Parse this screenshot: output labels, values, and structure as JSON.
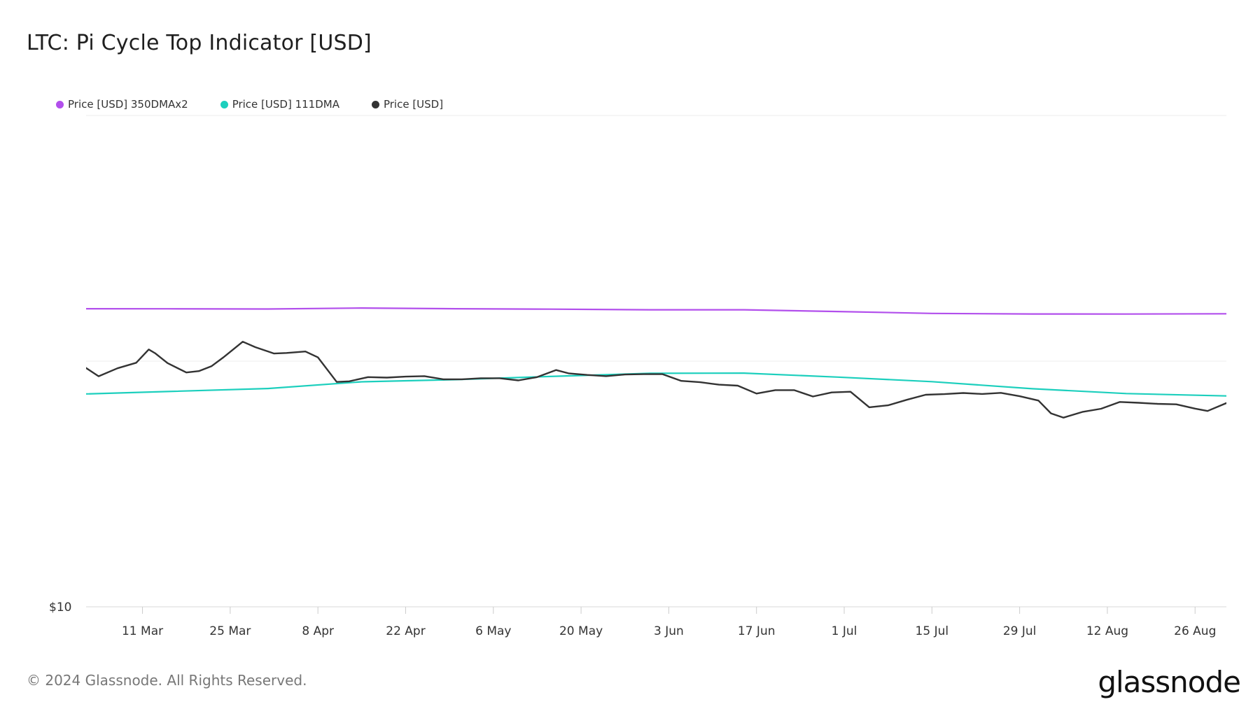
{
  "title": "LTC: Pi Cycle Top Indicator [USD]",
  "legend": [
    {
      "label": "Price [USD] 350DMAx2",
      "color": "#b24fec"
    },
    {
      "label": "Price [USD] 111DMA",
      "color": "#1ccfbd"
    },
    {
      "label": "Price [USD]",
      "color": "#333333"
    }
  ],
  "footer": "© 2024 Glassnode. All Rights Reserved.",
  "logo": "glassnode",
  "chart_data": {
    "type": "line",
    "title": "LTC: Pi Cycle Top Indicator [USD]",
    "y_scale": "log",
    "y_tick_labels": [
      "$10"
    ],
    "y_tick_values": [
      10
    ],
    "ylim": [
      10,
      1000
    ],
    "x_range": [
      "2024-03-02",
      "2024-08-31"
    ],
    "x_ticks": [
      "2024-03-11",
      "2024-03-25",
      "2024-04-08",
      "2024-04-22",
      "2024-05-06",
      "2024-05-20",
      "2024-06-03",
      "2024-06-17",
      "2024-07-01",
      "2024-07-15",
      "2024-07-29",
      "2024-08-12",
      "2024-08-26"
    ],
    "x_tick_labels": [
      "11 Mar",
      "25 Mar",
      "8 Apr",
      "22 Apr",
      "6 May",
      "20 May",
      "3 Jun",
      "17 Jun",
      "1 Jul",
      "15 Jul",
      "29 Jul",
      "12 Aug",
      "26 Aug"
    ],
    "grid": "horizontal",
    "legend_position": "top-left",
    "series": [
      {
        "name": "Price [USD] 350DMAx2",
        "color": "#b24fec",
        "x": [
          "2024-03-01",
          "2024-03-15",
          "2024-03-31",
          "2024-04-15",
          "2024-04-30",
          "2024-05-15",
          "2024-05-31",
          "2024-06-15",
          "2024-06-30",
          "2024-07-15",
          "2024-07-31",
          "2024-08-15",
          "2024-08-31"
        ],
        "y": [
          163.5,
          163.3,
          163.0,
          164.5,
          163.5,
          162.8,
          161.8,
          161.8,
          159.2,
          156.4,
          155.6,
          155.5,
          155.9
        ]
      },
      {
        "name": "Price [USD] 111DMA",
        "color": "#1ccfbd",
        "x": [
          "2024-03-01",
          "2024-03-15",
          "2024-03-31",
          "2024-04-15",
          "2024-04-30",
          "2024-05-15",
          "2024-05-31",
          "2024-06-15",
          "2024-06-30",
          "2024-07-15",
          "2024-07-31",
          "2024-08-15",
          "2024-08-31"
        ],
        "y": [
          73.4,
          75.2,
          77.4,
          82.4,
          84.1,
          86.6,
          89.2,
          89.4,
          86.1,
          82.5,
          77.2,
          73.8,
          72.2
        ]
      },
      {
        "name": "Price [USD]",
        "color": "#333333",
        "x": [
          "2024-03-01",
          "2024-03-04",
          "2024-03-07",
          "2024-03-10",
          "2024-03-12",
          "2024-03-13",
          "2024-03-15",
          "2024-03-18",
          "2024-03-20",
          "2024-03-22",
          "2024-03-24",
          "2024-03-27",
          "2024-03-29",
          "2024-04-01",
          "2024-04-03",
          "2024-04-06",
          "2024-04-08",
          "2024-04-11",
          "2024-04-13",
          "2024-04-16",
          "2024-04-19",
          "2024-04-22",
          "2024-04-25",
          "2024-04-28",
          "2024-05-01",
          "2024-05-04",
          "2024-05-07",
          "2024-05-10",
          "2024-05-13",
          "2024-05-16",
          "2024-05-18",
          "2024-05-21",
          "2024-05-24",
          "2024-05-27",
          "2024-05-30",
          "2024-06-02",
          "2024-06-05",
          "2024-06-08",
          "2024-06-11",
          "2024-06-14",
          "2024-06-17",
          "2024-06-20",
          "2024-06-23",
          "2024-06-26",
          "2024-06-29",
          "2024-07-02",
          "2024-07-05",
          "2024-07-08",
          "2024-07-11",
          "2024-07-14",
          "2024-07-17",
          "2024-07-20",
          "2024-07-23",
          "2024-07-26",
          "2024-07-29",
          "2024-08-01",
          "2024-08-03",
          "2024-08-05",
          "2024-08-08",
          "2024-08-11",
          "2024-08-14",
          "2024-08-17",
          "2024-08-20",
          "2024-08-23",
          "2024-08-26",
          "2024-08-28",
          "2024-08-31"
        ],
        "y": [
          97.5,
          86.8,
          93.5,
          98.5,
          111.6,
          107.8,
          98.2,
          89.9,
          91.1,
          95.3,
          104.0,
          120.0,
          114.0,
          107.4,
          108.0,
          109.5,
          103.6,
          82.3,
          82.8,
          86.1,
          85.7,
          86.5,
          86.9,
          84.4,
          84.4,
          85.2,
          85.2,
          83.5,
          86.1,
          92.0,
          89.2,
          87.9,
          86.9,
          88.2,
          88.5,
          88.5,
          83.1,
          82.1,
          80.2,
          79.5,
          73.8,
          76.2,
          76.2,
          71.8,
          74.6,
          75.1,
          64.9,
          66.1,
          69.6,
          73.0,
          73.4,
          74.2,
          73.5,
          74.3,
          72.0,
          69.1,
          61.3,
          58.9,
          62.1,
          64.0,
          68.2,
          67.7,
          67.0,
          66.7,
          64.1,
          62.7,
          67.5
        ]
      }
    ]
  }
}
